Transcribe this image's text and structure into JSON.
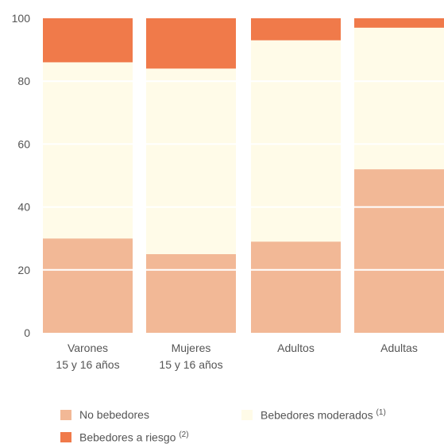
{
  "chart_data": {
    "type": "bar",
    "stacked": true,
    "ylim": [
      0,
      100
    ],
    "yticks": [
      0,
      20,
      40,
      60,
      80,
      100
    ],
    "categories": [
      [
        "Varones",
        "15 y 16 años"
      ],
      [
        "Mujeres",
        "15 y 16 años"
      ],
      [
        "Adultos"
      ],
      [
        "Adultas"
      ]
    ],
    "series": [
      {
        "name": "No bebedores",
        "note": "",
        "color": "#f2b896",
        "values": [
          30,
          25,
          29,
          52
        ]
      },
      {
        "name": "Bebedores moderados",
        "note": "(1)",
        "color": "#fffbe8",
        "values": [
          56,
          59,
          64,
          45
        ]
      },
      {
        "name": "Bebedores a riesgo",
        "note": "(2)",
        "color": "#f07a4a",
        "values": [
          14,
          16,
          7,
          3
        ]
      }
    ]
  }
}
